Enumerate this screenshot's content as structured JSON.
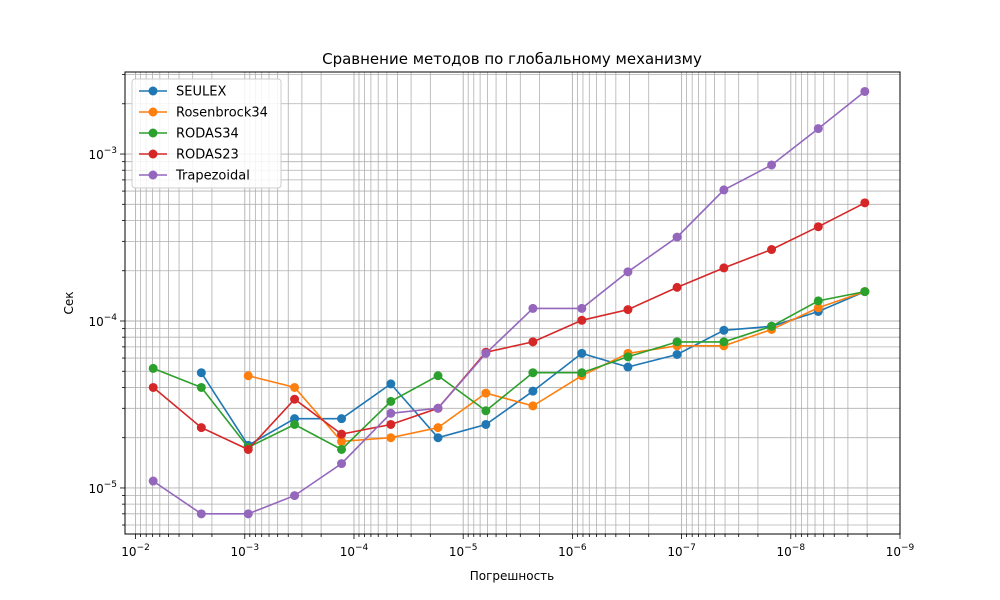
{
  "chart_data": {
    "type": "line",
    "title": "Сравнение методов по глобальному механизму",
    "xlabel": "Погрешность",
    "ylabel": "Сек",
    "x_scale": "log",
    "y_scale": "log",
    "x_inverted": true,
    "xlim": [
      0.0125,
      1e-09
    ],
    "ylim": [
      5.3e-06,
      0.0031
    ],
    "grid": "major and minor",
    "legend_position": "top-left",
    "x_ticks": [
      {
        "value": 0.01,
        "label": "10^-2"
      },
      {
        "value": 0.001,
        "label": "10^-3"
      },
      {
        "value": 0.0001,
        "label": "10^-4"
      },
      {
        "value": 1e-05,
        "label": "10^-5"
      },
      {
        "value": 1e-06,
        "label": "10^-6"
      },
      {
        "value": 1e-07,
        "label": "10^-7"
      },
      {
        "value": 1e-08,
        "label": "10^-8"
      },
      {
        "value": 1e-09,
        "label": "10^-9"
      }
    ],
    "y_ticks": [
      {
        "value": 1e-05,
        "label": "10^-5"
      },
      {
        "value": 0.0001,
        "label": "10^-4"
      },
      {
        "value": 0.001,
        "label": "10^-3"
      }
    ],
    "series": [
      {
        "name": "SEULEX",
        "color": "#1f77b4",
        "x": [
          0.0025,
          0.00093,
          0.00035,
          0.00013,
          4.6e-05,
          1.7e-05,
          6.2e-06,
          2.3e-06,
          8.2e-07,
          3.1e-07,
          1.1e-07,
          4.1e-08,
          1.5e-08,
          5.6e-09,
          2.1e-09
        ],
        "y": [
          4.9e-05,
          1.8e-05,
          2.6e-05,
          2.6e-05,
          4.2e-05,
          2e-05,
          2.4e-05,
          3.8e-05,
          6.4e-05,
          5.3e-05,
          6.3e-05,
          8.8e-05,
          9.3e-05,
          0.000114,
          0.00015
        ]
      },
      {
        "name": "Rosenbrock34",
        "color": "#ff7f0e",
        "x": [
          0.00093,
          0.00035,
          0.00013,
          4.6e-05,
          1.7e-05,
          6.2e-06,
          2.3e-06,
          8.2e-07,
          3.1e-07,
          1.1e-07,
          4.1e-08,
          1.5e-08,
          5.6e-09,
          2.1e-09
        ],
        "y": [
          4.7e-05,
          4e-05,
          1.9e-05,
          2e-05,
          2.3e-05,
          3.7e-05,
          3.1e-05,
          4.7e-05,
          6.4e-05,
          7.1e-05,
          7.1e-05,
          8.9e-05,
          0.00012,
          0.00015
        ]
      },
      {
        "name": "RODAS34",
        "color": "#2ca02c",
        "x": [
          0.0069,
          0.0025,
          0.00093,
          0.00035,
          0.00013,
          4.6e-05,
          1.7e-05,
          6.2e-06,
          2.3e-06,
          8.2e-07,
          3.1e-07,
          1.1e-07,
          4.1e-08,
          1.5e-08,
          5.6e-09,
          2.1e-09
        ],
        "y": [
          5.2e-05,
          4e-05,
          1.75e-05,
          2.4e-05,
          1.7e-05,
          3.3e-05,
          4.7e-05,
          2.9e-05,
          4.9e-05,
          4.9e-05,
          6.1e-05,
          7.5e-05,
          7.5e-05,
          9.3e-05,
          0.000132,
          0.00015
        ]
      },
      {
        "name": "RODAS23",
        "color": "#d62728",
        "x": [
          0.0069,
          0.0025,
          0.00093,
          0.00035,
          0.00013,
          4.6e-05,
          1.7e-05,
          6.2e-06,
          2.3e-06,
          8.2e-07,
          3.1e-07,
          1.1e-07,
          4.1e-08,
          1.5e-08,
          5.6e-09,
          2.1e-09
        ],
        "y": [
          4e-05,
          2.3e-05,
          1.7e-05,
          3.4e-05,
          2.1e-05,
          2.4e-05,
          3e-05,
          6.5e-05,
          7.5e-05,
          0.000101,
          0.000117,
          0.000159,
          0.000208,
          0.000268,
          0.000367,
          0.00051
        ]
      },
      {
        "name": "Trapezoidal",
        "color": "#9467bd",
        "x": [
          0.0069,
          0.0025,
          0.00093,
          0.00035,
          0.00013,
          4.6e-05,
          1.7e-05,
          6.2e-06,
          2.3e-06,
          8.2e-07,
          3.1e-07,
          1.1e-07,
          4.1e-08,
          1.5e-08,
          5.6e-09,
          2.1e-09
        ],
        "y": [
          1.1e-05,
          7e-06,
          7e-06,
          9e-06,
          1.4e-05,
          2.8e-05,
          3e-05,
          6.4e-05,
          0.000119,
          0.000119,
          0.000197,
          0.000318,
          0.00061,
          0.00086,
          0.00142,
          0.00237
        ]
      }
    ]
  }
}
